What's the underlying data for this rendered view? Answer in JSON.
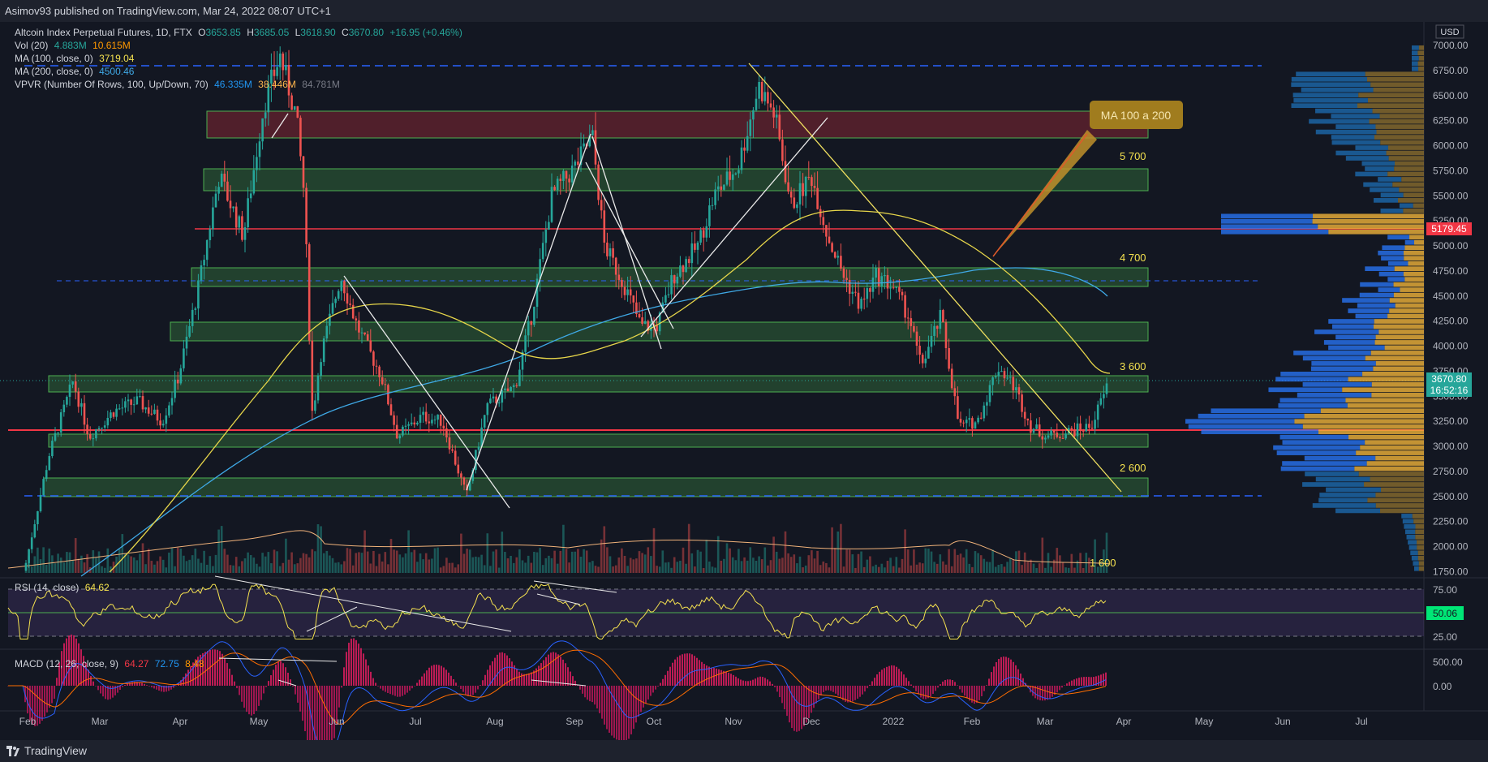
{
  "header": {
    "published": "Asimov93 published on TradingView.com, Mar 24, 2022 08:07 UTC+1"
  },
  "footer": {
    "brand": "TradingView"
  },
  "symbol": {
    "name": "Altcoin Index Perpetual Futures, 1D, FTX",
    "o_label": "O",
    "o": "3653.85",
    "h_label": "H",
    "h": "3685.05",
    "l_label": "L",
    "l": "3618.90",
    "c_label": "C",
    "c": "3670.80",
    "change": "+16.95 (+0.46%)"
  },
  "indicators": {
    "vol": {
      "label": "Vol (20)",
      "v1": "4.883M",
      "v2": "10.615M"
    },
    "ma100": {
      "label": "MA (100, close, 0)",
      "value": "3719.04"
    },
    "ma200": {
      "label": "MA (200, close, 0)",
      "value": "4500.46"
    },
    "vpvr": {
      "label": "VPVR (Number Of Rows, 100, Up/Down, 70)",
      "v1": "46.335M",
      "v2": "38.446M",
      "v3": "84.781M"
    },
    "rsi": {
      "label": "RSI (14, close)",
      "value": "64.62",
      "axis_label": "50.06",
      "ticks": [
        "75.00",
        "25.00"
      ]
    },
    "macd": {
      "label": "MACD (12, 26, close, 9)",
      "v1": "64.27",
      "v2": "72.75",
      "v3": "8.48",
      "ticks": [
        "500.00",
        "0.00"
      ]
    }
  },
  "price_axis": {
    "currency": "USD",
    "ticks": [
      "7000.00",
      "6750.00",
      "6500.00",
      "6250.00",
      "6000.00",
      "5750.00",
      "5500.00",
      "5250.00",
      "5000.00",
      "4750.00",
      "4500.00",
      "4250.00",
      "4000.00",
      "3750.00",
      "3500.00",
      "3250.00",
      "3000.00",
      "2750.00",
      "2500.00",
      "2250.00",
      "2000.00",
      "1750.00"
    ],
    "red_label": "5179.45",
    "current_price": "3670.80",
    "countdown": "16:52:16"
  },
  "time_axis": {
    "labels": [
      "Feb",
      "Mar",
      "Apr",
      "May",
      "Jun",
      "Jul",
      "Aug",
      "Sep",
      "Oct",
      "Nov",
      "Dec",
      "2022",
      "Feb",
      "Mar",
      "Apr",
      "May",
      "Jun",
      "Jul"
    ]
  },
  "annotations": {
    "callout": "MA 100 a 200",
    "levels": [
      "5 700",
      "4 700",
      "3 600",
      "2 600",
      "1 600"
    ]
  },
  "colors": {
    "background": "#131722",
    "green_zone": "#4caf50",
    "red_zone": "#f23645",
    "candle_up": "#26a69a",
    "candle_down": "#ef5350",
    "ma100": "#f0e060",
    "ma200": "#2196f3",
    "rsi": "#f5e24f",
    "callout": "#b08a1e"
  }
}
